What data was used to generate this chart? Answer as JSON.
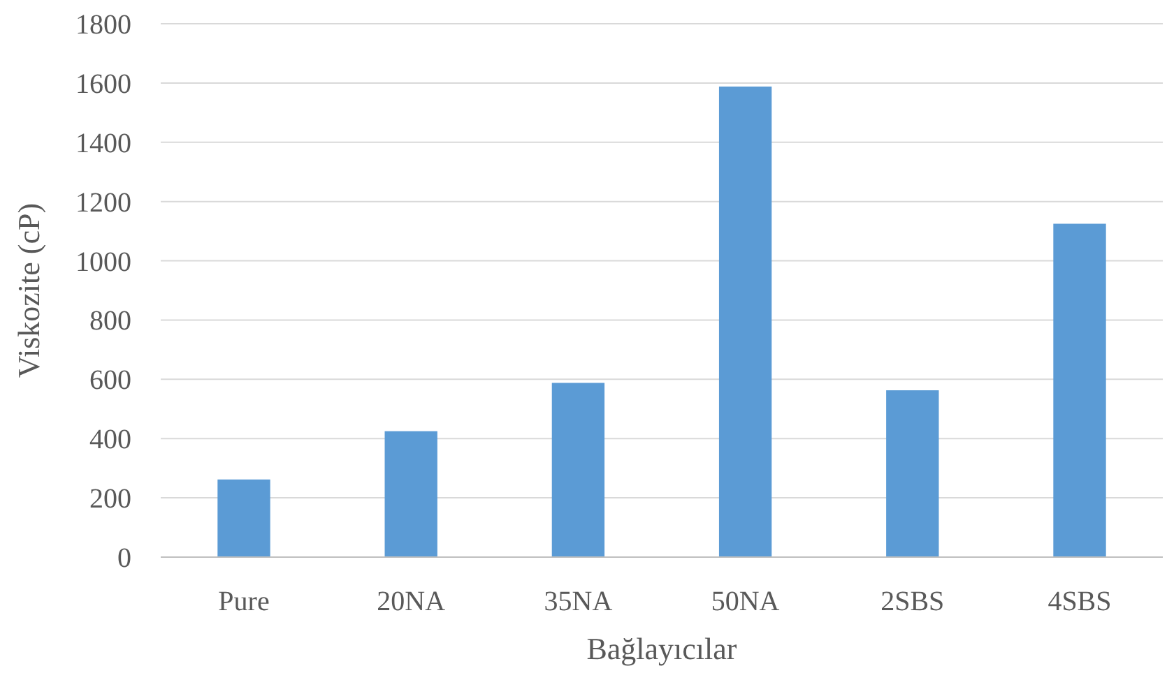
{
  "chart_data": {
    "type": "bar",
    "xlabel": "Bağlayıcılar",
    "ylabel": "Viskozite (cP)",
    "categories": [
      "Pure",
      "20NA",
      "35NA",
      "50NA",
      "2SBS",
      "4SBS"
    ],
    "values": [
      262,
      425,
      588,
      1588,
      563,
      1125
    ],
    "color": "#5b9bd5",
    "ylim": [
      0,
      1800
    ],
    "yticks": [
      0,
      200,
      400,
      600,
      800,
      1000,
      1200,
      1400,
      1600,
      1800
    ],
    "grid": "y"
  }
}
